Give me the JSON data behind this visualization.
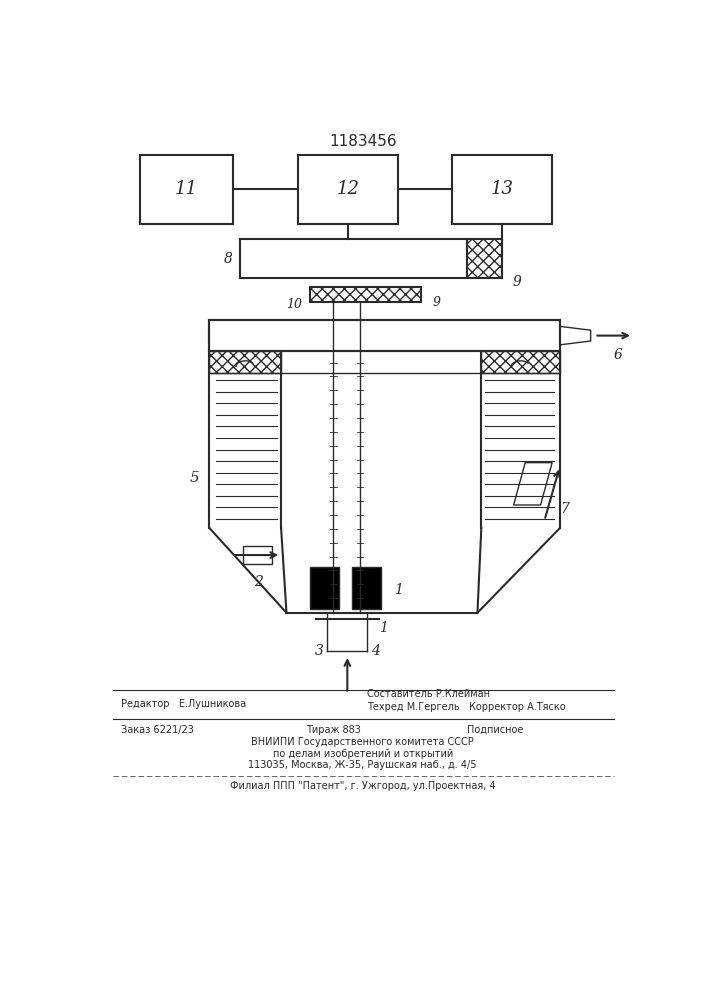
{
  "title": "1183456",
  "bg_color": "#ffffff",
  "line_color": "#2a2a2a",
  "footer_lines": [
    "Редактор   Е.Лушникова",
    "Составитель Р.Клейман",
    "Техред М.Гергель   Корректор А.Тяско",
    "Заказ 6221/23",
    "Тираж 883",
    "Подписное",
    "ВНИИПИ Государственного комитета СССР",
    "по делам изобретений и открытий",
    "113035, Москва, Ж-35, Раушская наб., д. 4/5",
    "Филиал ППП \"Патент\", г. Ужгород, ул.Проектная, 4"
  ]
}
